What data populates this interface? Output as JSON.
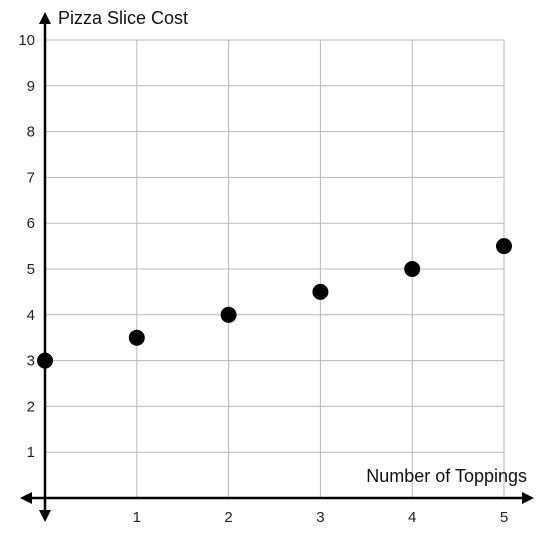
{
  "chart_data": {
    "type": "scatter",
    "title": "",
    "xlabel": "Number of Toppings",
    "ylabel": "Pizza Slice Cost",
    "xlim": [
      0,
      5
    ],
    "ylim": [
      0,
      10
    ],
    "x_ticks": [
      "1",
      "2",
      "3",
      "4",
      "5"
    ],
    "y_ticks": [
      "1",
      "2",
      "3",
      "4",
      "5",
      "6",
      "7",
      "8",
      "9",
      "10"
    ],
    "grid": true,
    "series": [
      {
        "points": [
          {
            "x": 0,
            "y": 3
          },
          {
            "x": 1,
            "y": 3.5
          },
          {
            "x": 2,
            "y": 4
          },
          {
            "x": 3,
            "y": 4.5
          },
          {
            "x": 4,
            "y": 5
          },
          {
            "x": 5,
            "y": 5.5
          }
        ]
      }
    ],
    "colors": {
      "point": "#000000",
      "grid": "#b8b8b8",
      "axis": "#000000"
    }
  }
}
